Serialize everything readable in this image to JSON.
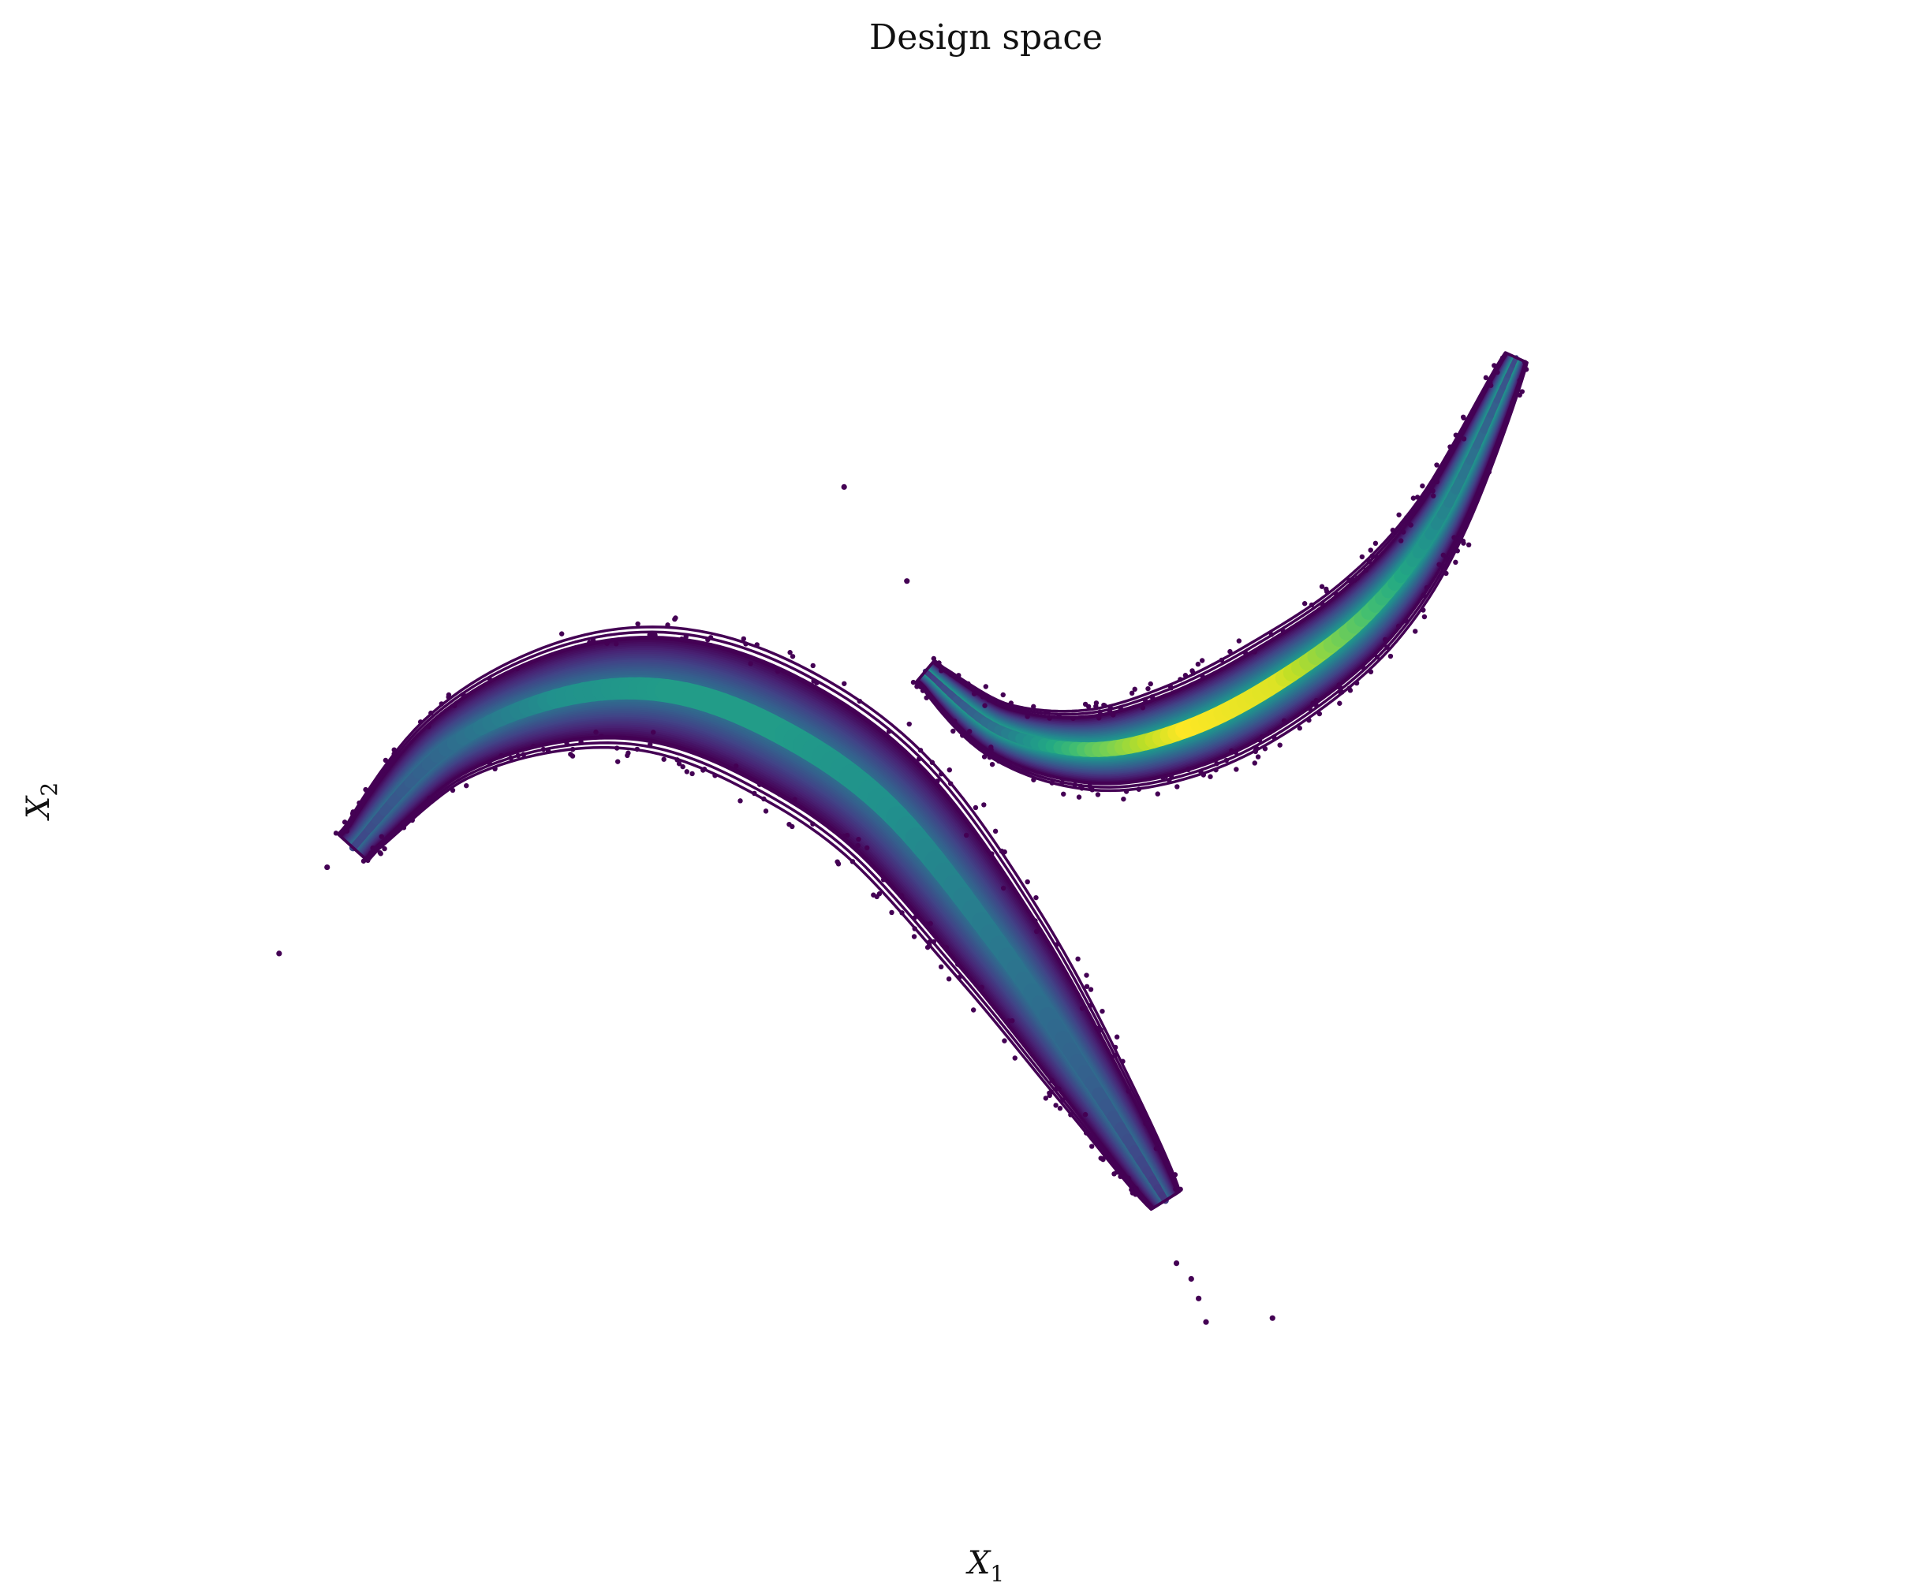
{
  "chart_data": {
    "type": "scatter",
    "title": "Design space",
    "xlabel": "X",
    "xlabel_subscript": "1",
    "ylabel": "X",
    "ylabel_subscript": "2",
    "axes_visible": false,
    "grid": false,
    "legend": "none",
    "colormap": "viridis",
    "xlim": [
      -2.2,
      2.2
    ],
    "ylim": [
      -1.8,
      1.6
    ],
    "series": [
      {
        "kind": "density-band",
        "spine": [
          [
            -1.65,
            -0.2
          ],
          [
            -1.4,
            0.05
          ],
          [
            -1.1,
            0.18
          ],
          [
            -0.8,
            0.2
          ],
          [
            -0.5,
            0.1
          ],
          [
            -0.2,
            -0.1
          ],
          [
            0.1,
            -0.45
          ],
          [
            0.35,
            -0.8
          ],
          [
            0.55,
            -1.1
          ]
        ],
        "peak_density": 0.55,
        "density_at": [
          0.2,
          0.35,
          0.5,
          0.55,
          0.55,
          0.5,
          0.4,
          0.3,
          0.15
        ],
        "contour_levels": 3
      },
      {
        "kind": "density-band",
        "spine": [
          [
            -0.1,
            0.25
          ],
          [
            0.1,
            0.1
          ],
          [
            0.35,
            0.05
          ],
          [
            0.6,
            0.1
          ],
          [
            0.85,
            0.22
          ],
          [
            1.1,
            0.4
          ],
          [
            1.3,
            0.65
          ],
          [
            1.5,
            1.05
          ]
        ],
        "peak_density": 1.0,
        "density_at": [
          0.15,
          0.4,
          0.75,
          1.0,
          0.95,
          0.7,
          0.45,
          0.2
        ],
        "contour_levels": 3
      },
      {
        "kind": "outliers",
        "points": [
          [
            -1.85,
            -0.47
          ],
          [
            -0.32,
            0.72
          ],
          [
            0.58,
            -1.26
          ],
          [
            0.62,
            -1.3
          ],
          [
            0.64,
            -1.35
          ],
          [
            0.66,
            -1.41
          ],
          [
            -0.15,
            0.48
          ],
          [
            -1.72,
            -0.25
          ],
          [
            0.84,
            -1.4
          ]
        ]
      }
    ]
  }
}
